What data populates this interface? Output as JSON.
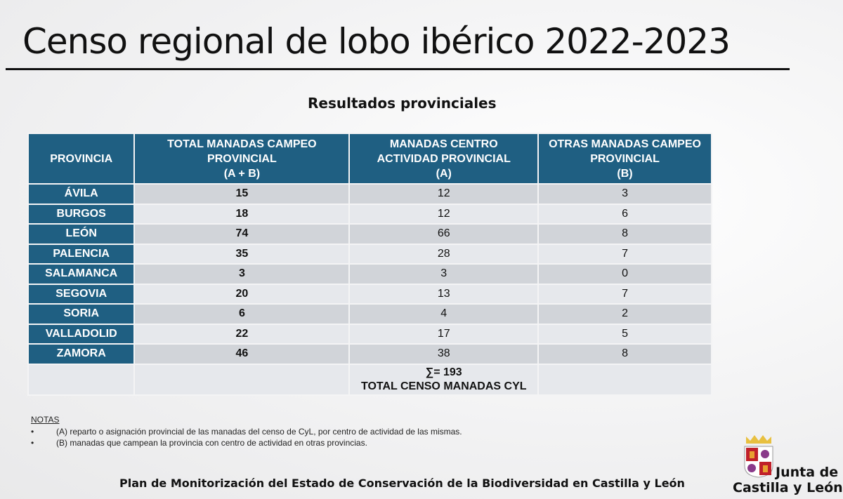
{
  "title": "Censo regional de lobo ibérico 2022-2023",
  "subtitle": "Resultados provinciales",
  "table": {
    "headers": [
      {
        "lines": [
          "PROVINCIA"
        ]
      },
      {
        "lines": [
          "TOTAL MANADAS CAMPEO",
          "PROVINCIAL",
          "(A + B)"
        ]
      },
      {
        "lines": [
          "MANADAS CENTRO",
          "ACTIVIDAD PROVINCIAL",
          "(A)"
        ]
      },
      {
        "lines": [
          "OTRAS MANADAS CAMPEO",
          "PROVINCIAL",
          "(B)"
        ]
      }
    ],
    "rows": [
      [
        "ÁVILA",
        "15",
        "12",
        "3"
      ],
      [
        "BURGOS",
        "18",
        "12",
        "6"
      ],
      [
        "LEÓN",
        "74",
        "66",
        "8"
      ],
      [
        "PALENCIA",
        "35",
        "28",
        "7"
      ],
      [
        "SALAMANCA",
        "3",
        "3",
        "0"
      ],
      [
        "SEGOVIA",
        "20",
        "13",
        "7"
      ],
      [
        "SORIA",
        "6",
        "4",
        "2"
      ],
      [
        "VALLADOLID",
        "22",
        "17",
        "5"
      ],
      [
        "ZAMORA",
        "46",
        "38",
        "8"
      ]
    ],
    "sum": "∑= 193",
    "sum_label": "TOTAL CENSO MANADAS CYL"
  },
  "notes": {
    "heading": "NOTAS",
    "items": [
      "(A) reparto o asignación provincial de las manadas del censo de CyL, por centro de actividad de las mismas.",
      "(B) manadas que campean la provincia con centro de actividad en otras provincias."
    ]
  },
  "footer": "Plan de Monitorización del Estado de Conservación de la Biodiversidad en Castilla y León",
  "logo": {
    "line1": "Junta de",
    "line2": "Castilla y León"
  },
  "colors": {
    "header": "#1f5f82",
    "row_dark": "#d1d4d9",
    "row_light": "#e6e8ec"
  }
}
